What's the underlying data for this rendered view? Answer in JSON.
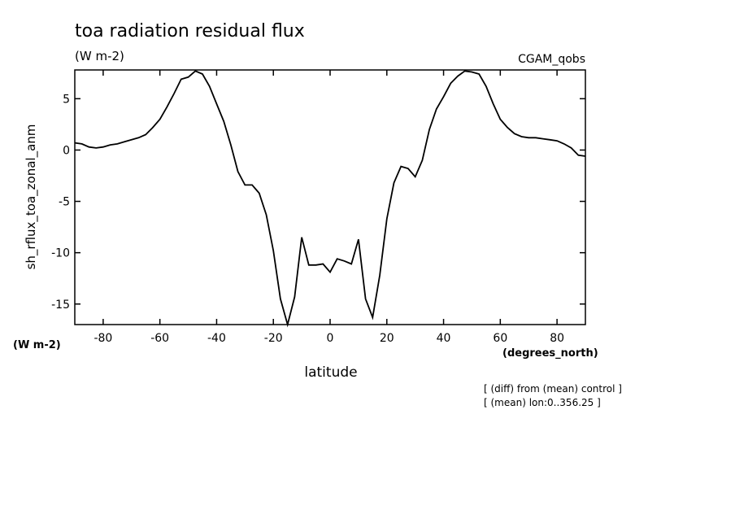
{
  "chart_data": {
    "type": "line",
    "title": "toa radiation residual flux",
    "subtitle": "(W m-2)",
    "model_label": "CGAM_qobs",
    "xlabel": "latitude",
    "xunit": "(degrees_north)",
    "ylabel": "sh_rflux_toa_zonal_anm",
    "yunit": "(W m-2)",
    "xlim": [
      -90,
      90
    ],
    "ylim": [
      -17,
      7.8
    ],
    "xticks": [
      -80,
      -60,
      -40,
      -20,
      0,
      20,
      40,
      60,
      80
    ],
    "xtick_labels": [
      "-80",
      "-60",
      "-40",
      "-20",
      "0",
      "20",
      "40",
      "60",
      "80"
    ],
    "yticks": [
      5,
      0,
      -5,
      -10,
      -15
    ],
    "ytick_labels": [
      "5",
      "0",
      "-5",
      "-10",
      "-15"
    ],
    "grid": false,
    "notes": [
      "[ (diff) from (mean) control ]",
      "[ (mean) lon:0..356.25 ]"
    ],
    "series": [
      {
        "x": [
          -90,
          -87.5,
          -85,
          -82.5,
          -80,
          -77.5,
          -75,
          -72.5,
          -70,
          -67.5,
          -65,
          -62.5,
          -60,
          -57.5,
          -55,
          -52.5,
          -50,
          -47.5,
          -45,
          -42.5,
          -40,
          -37.5,
          -35,
          -32.5,
          -30,
          -27.5,
          -25,
          -22.5,
          -20,
          -17.5,
          -15,
          -12.5,
          -10,
          -7.5,
          -5,
          -2.5,
          0,
          2.5,
          5,
          7.5,
          10,
          12.5,
          15,
          17.5,
          20,
          22.5,
          25,
          27.5,
          30,
          32.5,
          35,
          37.5,
          40,
          42.5,
          45,
          47.5,
          50,
          52.5,
          55,
          57.5,
          60,
          62.5,
          65,
          67.5,
          70,
          72.5,
          75,
          77.5,
          80,
          82.5,
          85,
          87.5,
          90
        ],
        "y": [
          0.7,
          0.6,
          0.3,
          0.2,
          0.3,
          0.5,
          0.6,
          0.8,
          1.0,
          1.2,
          1.5,
          2.2,
          3.0,
          4.2,
          5.5,
          6.9,
          7.1,
          7.7,
          7.4,
          6.2,
          4.5,
          2.8,
          0.5,
          -2.1,
          -3.4,
          -3.4,
          -4.2,
          -6.3,
          -9.8,
          -14.5,
          -17.0,
          -14.3,
          -8.5,
          -11.2,
          -11.2,
          -11.1,
          -11.9,
          -10.6,
          -10.8,
          -11.1,
          -8.7,
          -14.5,
          -16.3,
          -12.2,
          -6.7,
          -3.2,
          -1.6,
          -1.8,
          -2.6,
          -1.0,
          2.0,
          4.0,
          5.2,
          6.5,
          7.2,
          7.7,
          7.6,
          7.4,
          6.2,
          4.5,
          3.0,
          2.2,
          1.6,
          1.3,
          1.2,
          1.2,
          1.1,
          1.0,
          0.9,
          0.6,
          0.2,
          -0.5,
          -0.6
        ]
      }
    ]
  }
}
